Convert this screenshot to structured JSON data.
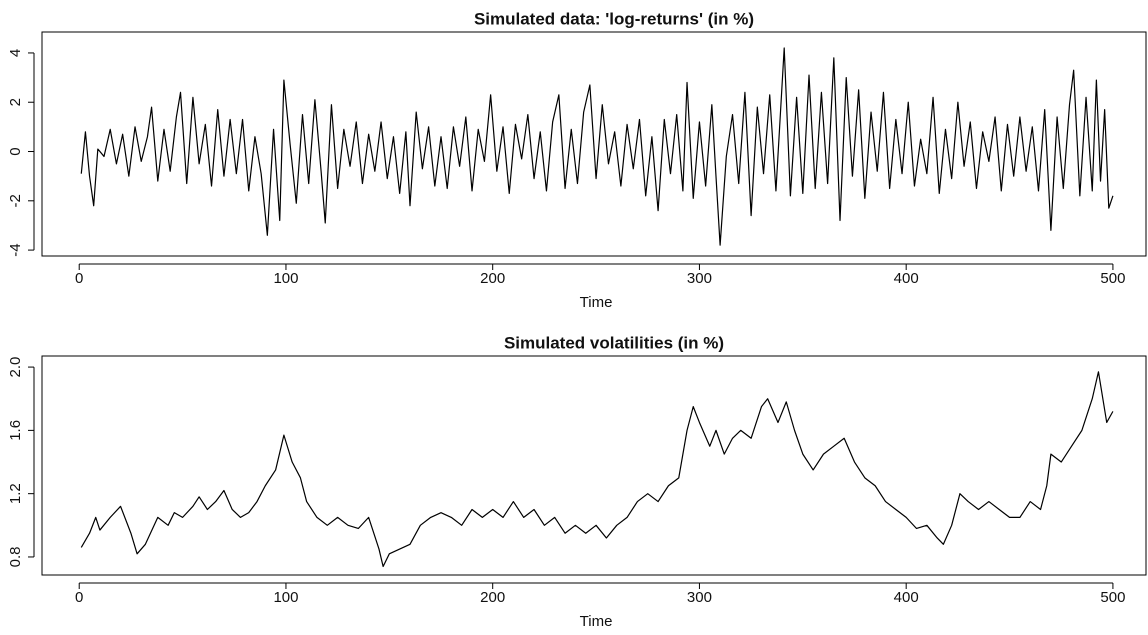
{
  "chart_data": [
    {
      "type": "line",
      "title": "Simulated data: 'log-returns' (in %)",
      "x_label": "Time",
      "x": [
        1,
        3,
        5,
        7,
        9,
        12,
        15,
        18,
        21,
        24,
        27,
        30,
        33,
        35,
        38,
        41,
        44,
        47,
        49,
        52,
        55,
        58,
        61,
        64,
        67,
        70,
        73,
        76,
        79,
        82,
        85,
        88,
        91,
        94,
        97,
        99,
        102,
        105,
        108,
        111,
        114,
        117,
        119,
        122,
        125,
        128,
        131,
        134,
        137,
        140,
        143,
        146,
        149,
        152,
        155,
        158,
        160,
        163,
        166,
        169,
        172,
        175,
        178,
        181,
        184,
        187,
        190,
        193,
        196,
        199,
        202,
        205,
        208,
        211,
        214,
        217,
        220,
        223,
        226,
        229,
        232,
        235,
        238,
        241,
        244,
        247,
        250,
        253,
        256,
        259,
        262,
        265,
        268,
        271,
        274,
        277,
        280,
        283,
        286,
        289,
        292,
        294,
        297,
        300,
        303,
        306,
        308,
        310,
        313,
        316,
        319,
        322,
        325,
        328,
        331,
        334,
        337,
        341,
        344,
        347,
        350,
        353,
        356,
        359,
        362,
        365,
        368,
        371,
        374,
        377,
        380,
        383,
        386,
        389,
        392,
        395,
        398,
        401,
        404,
        407,
        410,
        413,
        416,
        419,
        422,
        425,
        428,
        431,
        434,
        437,
        440,
        443,
        446,
        449,
        452,
        455,
        458,
        461,
        464,
        467,
        470,
        473,
        476,
        479,
        481,
        484,
        487,
        490,
        492,
        494,
        496,
        498,
        500
      ],
      "series": [
        {
          "color": "#000000",
          "values": [
            -0.9,
            0.8,
            -1.0,
            -2.2,
            0.1,
            -0.2,
            0.9,
            -0.5,
            0.7,
            -1.0,
            1.0,
            -0.4,
            0.6,
            1.8,
            -1.2,
            0.9,
            -0.8,
            1.4,
            2.4,
            -1.3,
            2.2,
            -0.5,
            1.1,
            -1.4,
            1.7,
            -1.0,
            1.3,
            -0.9,
            1.3,
            -1.6,
            0.6,
            -0.9,
            -3.4,
            0.9,
            -2.8,
            2.9,
            0.3,
            -2.1,
            1.5,
            -1.3,
            2.1,
            -0.8,
            -2.9,
            1.9,
            -1.5,
            0.9,
            -0.6,
            1.2,
            -1.3,
            0.7,
            -0.8,
            1.2,
            -1.1,
            0.6,
            -1.7,
            0.8,
            -2.2,
            1.6,
            -0.7,
            1.0,
            -1.4,
            0.6,
            -1.5,
            1.0,
            -0.6,
            1.4,
            -1.6,
            0.9,
            -0.4,
            2.3,
            -0.8,
            1.0,
            -1.7,
            1.1,
            -0.3,
            1.5,
            -1.1,
            0.8,
            -1.6,
            1.2,
            2.3,
            -1.5,
            0.9,
            -1.3,
            1.6,
            2.7,
            -1.1,
            1.9,
            -0.5,
            0.8,
            -1.4,
            1.1,
            -0.7,
            1.3,
            -1.8,
            0.6,
            -2.4,
            1.3,
            -0.9,
            1.5,
            -1.6,
            2.8,
            -1.9,
            1.2,
            -1.4,
            1.9,
            -1.0,
            -3.8,
            -0.2,
            1.5,
            -1.3,
            2.4,
            -2.6,
            1.8,
            -0.9,
            2.3,
            -1.6,
            4.2,
            -1.8,
            2.2,
            -1.7,
            3.1,
            -1.5,
            2.4,
            -1.3,
            3.8,
            -2.8,
            3.0,
            -1.0,
            2.5,
            -1.9,
            1.6,
            -0.8,
            2.4,
            -1.5,
            1.3,
            -0.9,
            2.0,
            -1.4,
            0.5,
            -0.9,
            2.2,
            -1.7,
            0.9,
            -1.1,
            2.0,
            -0.6,
            1.2,
            -1.5,
            0.8,
            -0.4,
            1.4,
            -1.6,
            1.1,
            -1.0,
            1.4,
            -0.8,
            1.0,
            -1.6,
            1.7,
            -3.2,
            1.4,
            -1.5,
            1.9,
            3.3,
            -1.8,
            2.2,
            -1.6,
            2.9,
            -1.2,
            1.7,
            -2.3,
            -1.8
          ]
        }
      ],
      "xlim": [
        -18,
        516
      ],
      "xticks": [
        0,
        100,
        200,
        300,
        400,
        500
      ],
      "ylim": [
        -4.24,
        4.85
      ],
      "yticks": [
        -4,
        -2,
        0,
        2,
        4
      ]
    },
    {
      "type": "line",
      "title": "Simulated volatilities (in %)",
      "x_label": "Time",
      "x": [
        1,
        5,
        8,
        10,
        15,
        20,
        25,
        28,
        32,
        38,
        43,
        46,
        50,
        55,
        58,
        62,
        66,
        70,
        74,
        78,
        82,
        86,
        90,
        95,
        99,
        103,
        107,
        110,
        115,
        120,
        125,
        130,
        135,
        140,
        145,
        147,
        150,
        155,
        160,
        165,
        170,
        175,
        180,
        185,
        190,
        195,
        200,
        205,
        210,
        215,
        220,
        225,
        230,
        235,
        240,
        245,
        250,
        255,
        260,
        265,
        270,
        275,
        280,
        285,
        290,
        294,
        297,
        300,
        305,
        308,
        312,
        316,
        320,
        325,
        330,
        333,
        338,
        342,
        346,
        350,
        355,
        360,
        365,
        370,
        375,
        380,
        385,
        390,
        395,
        400,
        405,
        410,
        415,
        418,
        422,
        426,
        430,
        435,
        440,
        445,
        450,
        455,
        460,
        465,
        468,
        470,
        475,
        480,
        485,
        490,
        493,
        497,
        500
      ],
      "series": [
        {
          "color": "#000000",
          "values": [
            0.86,
            0.95,
            1.05,
            0.97,
            1.05,
            1.12,
            0.95,
            0.82,
            0.88,
            1.05,
            1.0,
            1.08,
            1.05,
            1.12,
            1.18,
            1.1,
            1.15,
            1.22,
            1.1,
            1.05,
            1.08,
            1.15,
            1.25,
            1.35,
            1.57,
            1.4,
            1.3,
            1.15,
            1.05,
            1.0,
            1.05,
            1.0,
            0.98,
            1.05,
            0.85,
            0.74,
            0.82,
            0.85,
            0.88,
            1.0,
            1.05,
            1.08,
            1.05,
            1.0,
            1.1,
            1.05,
            1.1,
            1.05,
            1.15,
            1.05,
            1.1,
            1.0,
            1.05,
            0.95,
            1.0,
            0.95,
            1.0,
            0.92,
            1.0,
            1.05,
            1.15,
            1.2,
            1.15,
            1.25,
            1.3,
            1.6,
            1.75,
            1.65,
            1.5,
            1.6,
            1.45,
            1.55,
            1.6,
            1.55,
            1.75,
            1.8,
            1.65,
            1.78,
            1.6,
            1.45,
            1.35,
            1.45,
            1.5,
            1.55,
            1.4,
            1.3,
            1.25,
            1.15,
            1.1,
            1.05,
            0.98,
            1.0,
            0.92,
            0.88,
            1.0,
            1.2,
            1.15,
            1.1,
            1.15,
            1.1,
            1.05,
            1.05,
            1.15,
            1.1,
            1.25,
            1.45,
            1.4,
            1.5,
            1.6,
            1.8,
            1.97,
            1.65,
            1.72
          ]
        }
      ],
      "xlim": [
        -18,
        516
      ],
      "xticks": [
        0,
        100,
        200,
        300,
        400,
        500
      ],
      "ylim": [
        0.686,
        2.07
      ],
      "yticks": [
        0.8,
        1.2,
        1.6,
        {
          "value": 2,
          "label": "2.0"
        }
      ]
    }
  ]
}
